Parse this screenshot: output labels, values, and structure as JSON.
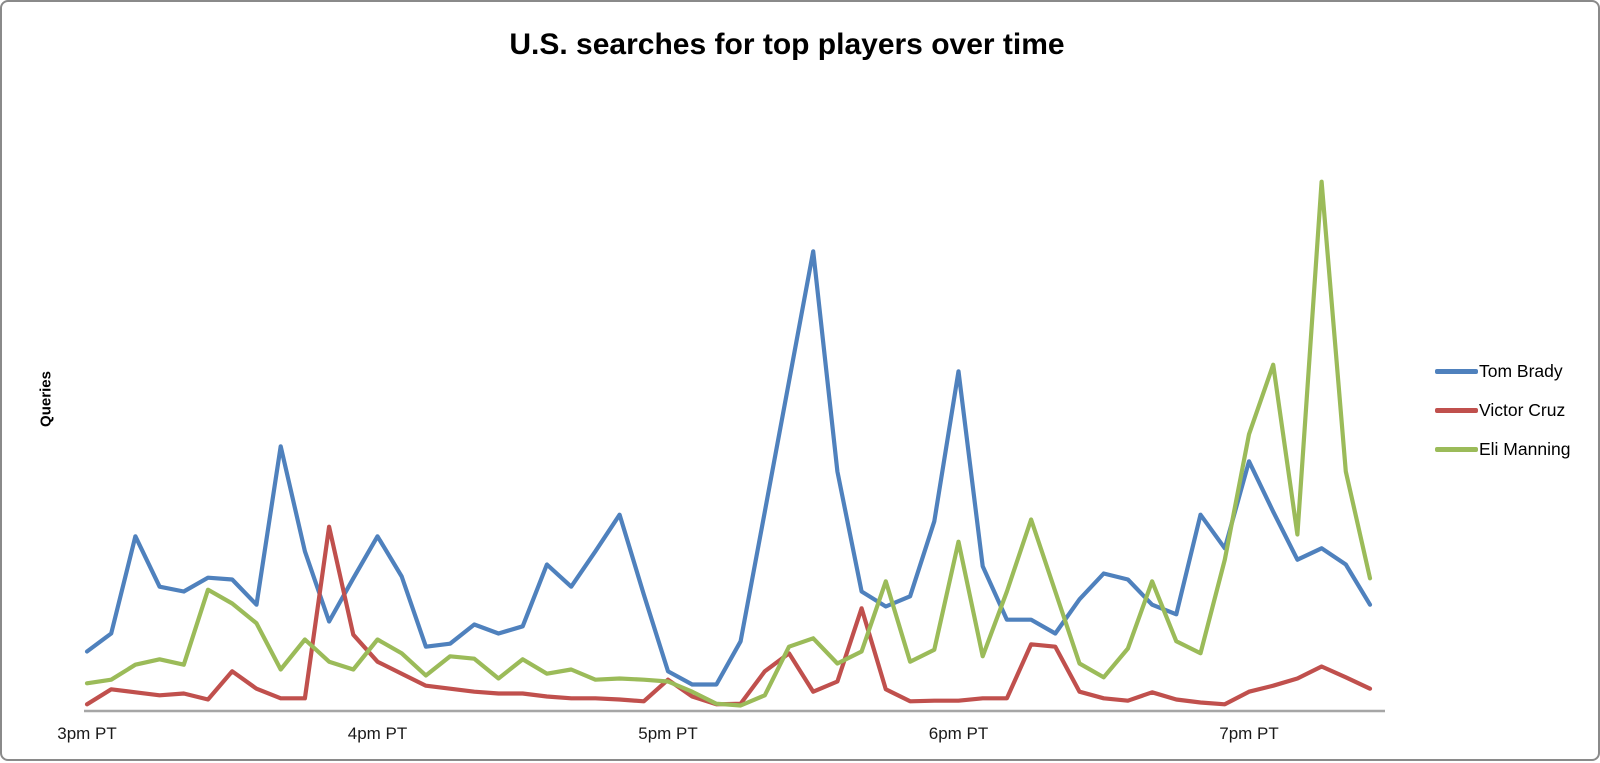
{
  "window": {
    "background": "#ffffff",
    "border_color": "#8a8a8a"
  },
  "chart_data": {
    "type": "line",
    "title": "U.S. searches for top players over time",
    "ylabel": "Queries",
    "xlabel": "",
    "x_tick_labels": [
      "3pm PT",
      "4pm PT",
      "5pm PT",
      "6pm PT",
      "7pm PT"
    ],
    "x_tick_indices": [
      0,
      12,
      24,
      36,
      48
    ],
    "points_per_series": 54,
    "ylim": [
      0,
      100
    ],
    "y_units": "relative query volume (y axis unlabeled)",
    "grid": false,
    "y_tick_labels_visible": false,
    "legend_position": "right",
    "axis_color": "#a6a6a6",
    "series": [
      {
        "name": "Tom Brady",
        "color": "#4F81BD",
        "values": [
          10.0,
          13.0,
          29.2,
          20.8,
          20.0,
          22.3,
          22.0,
          17.8,
          44.2,
          26.7,
          15.0,
          22.2,
          29.2,
          22.5,
          10.8,
          11.3,
          14.5,
          13.0,
          14.2,
          24.5,
          20.8,
          26.7,
          32.8,
          19.5,
          6.7,
          4.5,
          4.5,
          11.7,
          33.3,
          55.0,
          76.7,
          40.0,
          20.0,
          17.5,
          19.2,
          31.7,
          56.7,
          24.2,
          15.3,
          15.3,
          13.0,
          18.7,
          23.0,
          22.0,
          17.8,
          16.2,
          32.8,
          27.2,
          41.7,
          33.3,
          25.3,
          27.2,
          24.5,
          17.8
        ]
      },
      {
        "name": "Victor Cruz",
        "color": "#C0504D",
        "values": [
          1.2,
          3.7,
          3.2,
          2.7,
          3.0,
          2.0,
          6.7,
          3.8,
          2.2,
          2.2,
          30.8,
          12.8,
          8.3,
          6.3,
          4.3,
          3.8,
          3.3,
          3.0,
          3.0,
          2.5,
          2.2,
          2.2,
          2.0,
          1.7,
          5.3,
          2.5,
          1.2,
          1.3,
          6.7,
          9.7,
          3.3,
          5.0,
          17.2,
          3.7,
          1.7,
          1.8,
          1.8,
          2.2,
          2.2,
          11.2,
          10.8,
          3.3,
          2.2,
          1.8,
          3.2,
          2.0,
          1.5,
          1.2,
          3.3,
          4.3,
          5.5,
          7.5,
          5.7,
          3.8
        ]
      },
      {
        "name": "Eli Manning",
        "color": "#9BBB59",
        "values": [
          4.7,
          5.3,
          7.8,
          8.7,
          7.8,
          20.3,
          18.0,
          14.7,
          7.0,
          12.0,
          8.3,
          7.0,
          12.0,
          9.7,
          6.0,
          9.2,
          8.8,
          5.5,
          8.7,
          6.3,
          7.0,
          5.3,
          5.5,
          5.3,
          5.0,
          3.3,
          1.3,
          1.0,
          2.7,
          10.8,
          12.2,
          8.0,
          10.0,
          21.7,
          8.3,
          10.3,
          28.3,
          9.2,
          20.0,
          32.0,
          20.0,
          8.0,
          5.7,
          10.5,
          21.7,
          11.7,
          9.7,
          25.3,
          46.2,
          57.8,
          29.5,
          88.3,
          40.0,
          22.2
        ]
      }
    ]
  }
}
